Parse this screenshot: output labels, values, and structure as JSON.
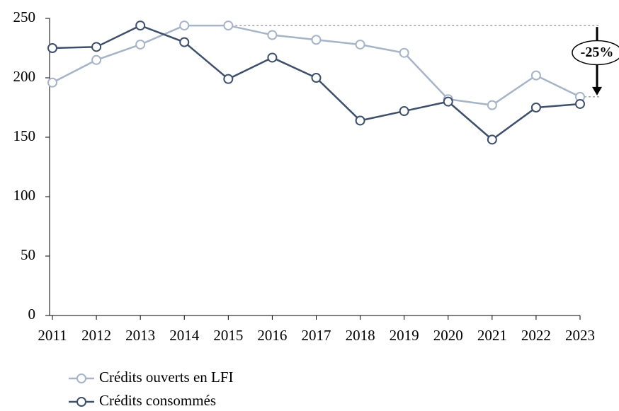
{
  "chart_data": {
    "type": "line",
    "categories": [
      "2011",
      "2012",
      "2013",
      "2014",
      "2015",
      "2016",
      "2017",
      "2018",
      "2019",
      "2020",
      "2021",
      "2022",
      "2023"
    ],
    "series": [
      {
        "name": "Crédits ouverts en LFI",
        "color": "#a6b4c8",
        "values": [
          196,
          215,
          228,
          244,
          244,
          236,
          232,
          228,
          221,
          182,
          177,
          202,
          184
        ]
      },
      {
        "name": "Crédits consommés",
        "color": "#3d4f6a",
        "values": [
          225,
          226,
          244,
          230,
          199,
          217,
          200,
          164,
          172,
          180,
          148,
          175,
          178
        ]
      }
    ],
    "ylim": [
      0,
      250
    ],
    "yticks": [
      0,
      50,
      100,
      150,
      200,
      250
    ],
    "annotation": "-25%",
    "legend": "bottom-left"
  }
}
